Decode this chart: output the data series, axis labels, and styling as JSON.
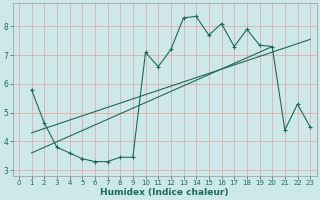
{
  "xlabel": "Humidex (Indice chaleur)",
  "bg_color": "#cde8e8",
  "line_color": "#1a6b5a",
  "grid_color": "#e8a0a0",
  "xlim": [
    -0.5,
    23.5
  ],
  "ylim": [
    2.8,
    8.8
  ],
  "yticks": [
    3,
    4,
    5,
    6,
    7,
    8
  ],
  "xticks": [
    0,
    1,
    2,
    3,
    4,
    5,
    6,
    7,
    8,
    9,
    10,
    11,
    12,
    13,
    14,
    15,
    16,
    17,
    18,
    19,
    20,
    21,
    22,
    23
  ],
  "curve_x": [
    1,
    2,
    3,
    4,
    5,
    6,
    7,
    8,
    9,
    10,
    11,
    12,
    13,
    14,
    15,
    16,
    17,
    18,
    19,
    20,
    21,
    22,
    23
  ],
  "curve_y": [
    5.8,
    4.65,
    3.8,
    3.6,
    3.4,
    3.3,
    3.3,
    3.45,
    3.45,
    7.1,
    6.6,
    7.2,
    8.3,
    8.35,
    7.7,
    8.1,
    7.3,
    7.9,
    7.35,
    7.3,
    4.4,
    5.3,
    4.5
  ],
  "line1_x": [
    1,
    20
  ],
  "line1_y": [
    3.6,
    7.3
  ],
  "line2_x": [
    1,
    23
  ],
  "line2_y": [
    4.3,
    7.55
  ]
}
